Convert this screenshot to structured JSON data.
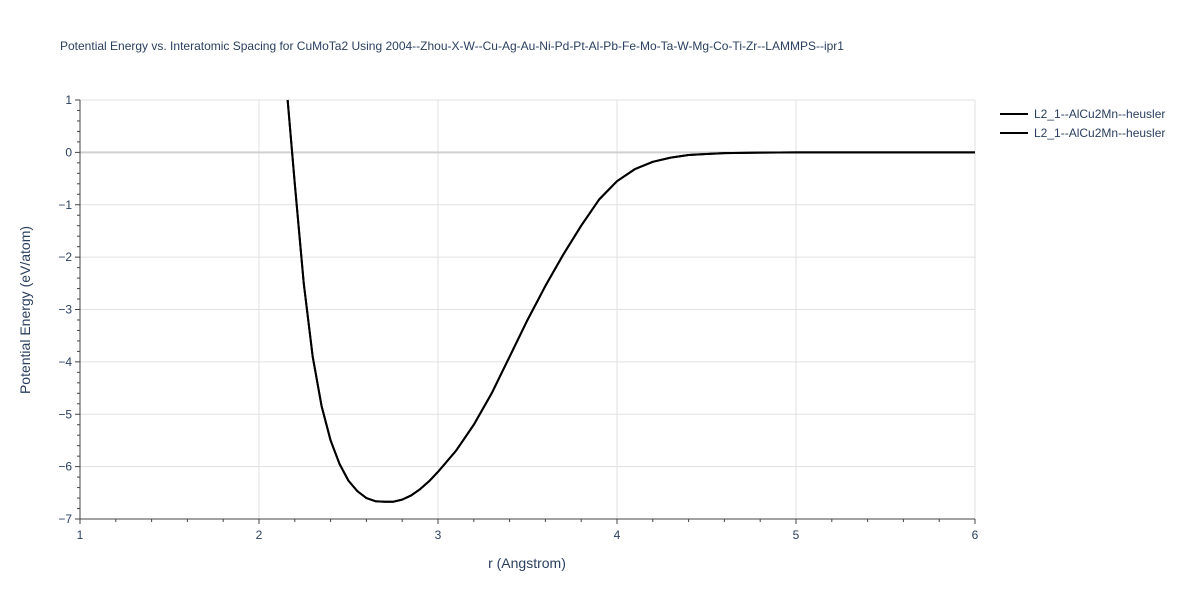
{
  "chart_data": {
    "type": "line",
    "title": "Potential Energy vs. Interatomic Spacing for CuMoTa2 Using 2004--Zhou-X-W--Cu-Ag-Au-Ni-Pd-Pt-Al-Pb-Fe-Mo-Ta-W-Mg-Co-Ti-Zr--LAMMPS--ipr1",
    "xlabel": "r (Angstrom)",
    "ylabel": "Potential Energy (eV/atom)",
    "xlim": [
      1,
      6
    ],
    "ylim": [
      -7,
      1
    ],
    "x_ticks": [
      "1",
      "2",
      "3",
      "4",
      "5",
      "6"
    ],
    "y_ticks": [
      "1",
      "0",
      "−1",
      "−2",
      "−3",
      "−4",
      "−5",
      "−6",
      "−7"
    ],
    "grid": true,
    "legend_position": "top-right",
    "line_color": "#000000",
    "series": [
      {
        "name": "L2_1--AlCu2Mn--heusler",
        "x": [
          2.16,
          2.18,
          2.2,
          2.25,
          2.3,
          2.35,
          2.4,
          2.45,
          2.5,
          2.55,
          2.6,
          2.65,
          2.7,
          2.75,
          2.8,
          2.85,
          2.9,
          2.95,
          3.0,
          3.1,
          3.2,
          3.3,
          3.4,
          3.5,
          3.6,
          3.7,
          3.8,
          3.9,
          4.0,
          4.1,
          4.2,
          4.3,
          4.4,
          4.5,
          4.6,
          4.8,
          5.0,
          5.5,
          6.0
        ],
        "y": [
          1.0,
          0.2,
          -0.6,
          -2.5,
          -3.9,
          -4.85,
          -5.5,
          -5.95,
          -6.27,
          -6.47,
          -6.6,
          -6.66,
          -6.67,
          -6.67,
          -6.63,
          -6.55,
          -6.43,
          -6.28,
          -6.1,
          -5.7,
          -5.2,
          -4.6,
          -3.9,
          -3.2,
          -2.55,
          -1.95,
          -1.4,
          -0.9,
          -0.55,
          -0.32,
          -0.18,
          -0.1,
          -0.05,
          -0.03,
          -0.015,
          -0.005,
          0.0,
          0.0,
          0.0
        ]
      },
      {
        "name": "L2_1--AlCu2Mn--heusler",
        "x": [
          2.16,
          2.18,
          2.2,
          2.25,
          2.3,
          2.35,
          2.4,
          2.45,
          2.5,
          2.55,
          2.6,
          2.65,
          2.7,
          2.75,
          2.8,
          2.85,
          2.9,
          2.95,
          3.0,
          3.1,
          3.2,
          3.3,
          3.4,
          3.5,
          3.6,
          3.7,
          3.8,
          3.9,
          4.0,
          4.1,
          4.2,
          4.3,
          4.4,
          4.5,
          4.6,
          4.8,
          5.0,
          5.5,
          6.0
        ],
        "y": [
          1.0,
          0.2,
          -0.6,
          -2.5,
          -3.9,
          -4.85,
          -5.5,
          -5.95,
          -6.27,
          -6.47,
          -6.6,
          -6.66,
          -6.67,
          -6.67,
          -6.63,
          -6.55,
          -6.43,
          -6.28,
          -6.1,
          -5.7,
          -5.2,
          -4.6,
          -3.9,
          -3.2,
          -2.55,
          -1.95,
          -1.4,
          -0.9,
          -0.55,
          -0.32,
          -0.18,
          -0.1,
          -0.05,
          -0.03,
          -0.015,
          -0.005,
          0.0,
          0.0,
          0.0
        ]
      }
    ]
  }
}
